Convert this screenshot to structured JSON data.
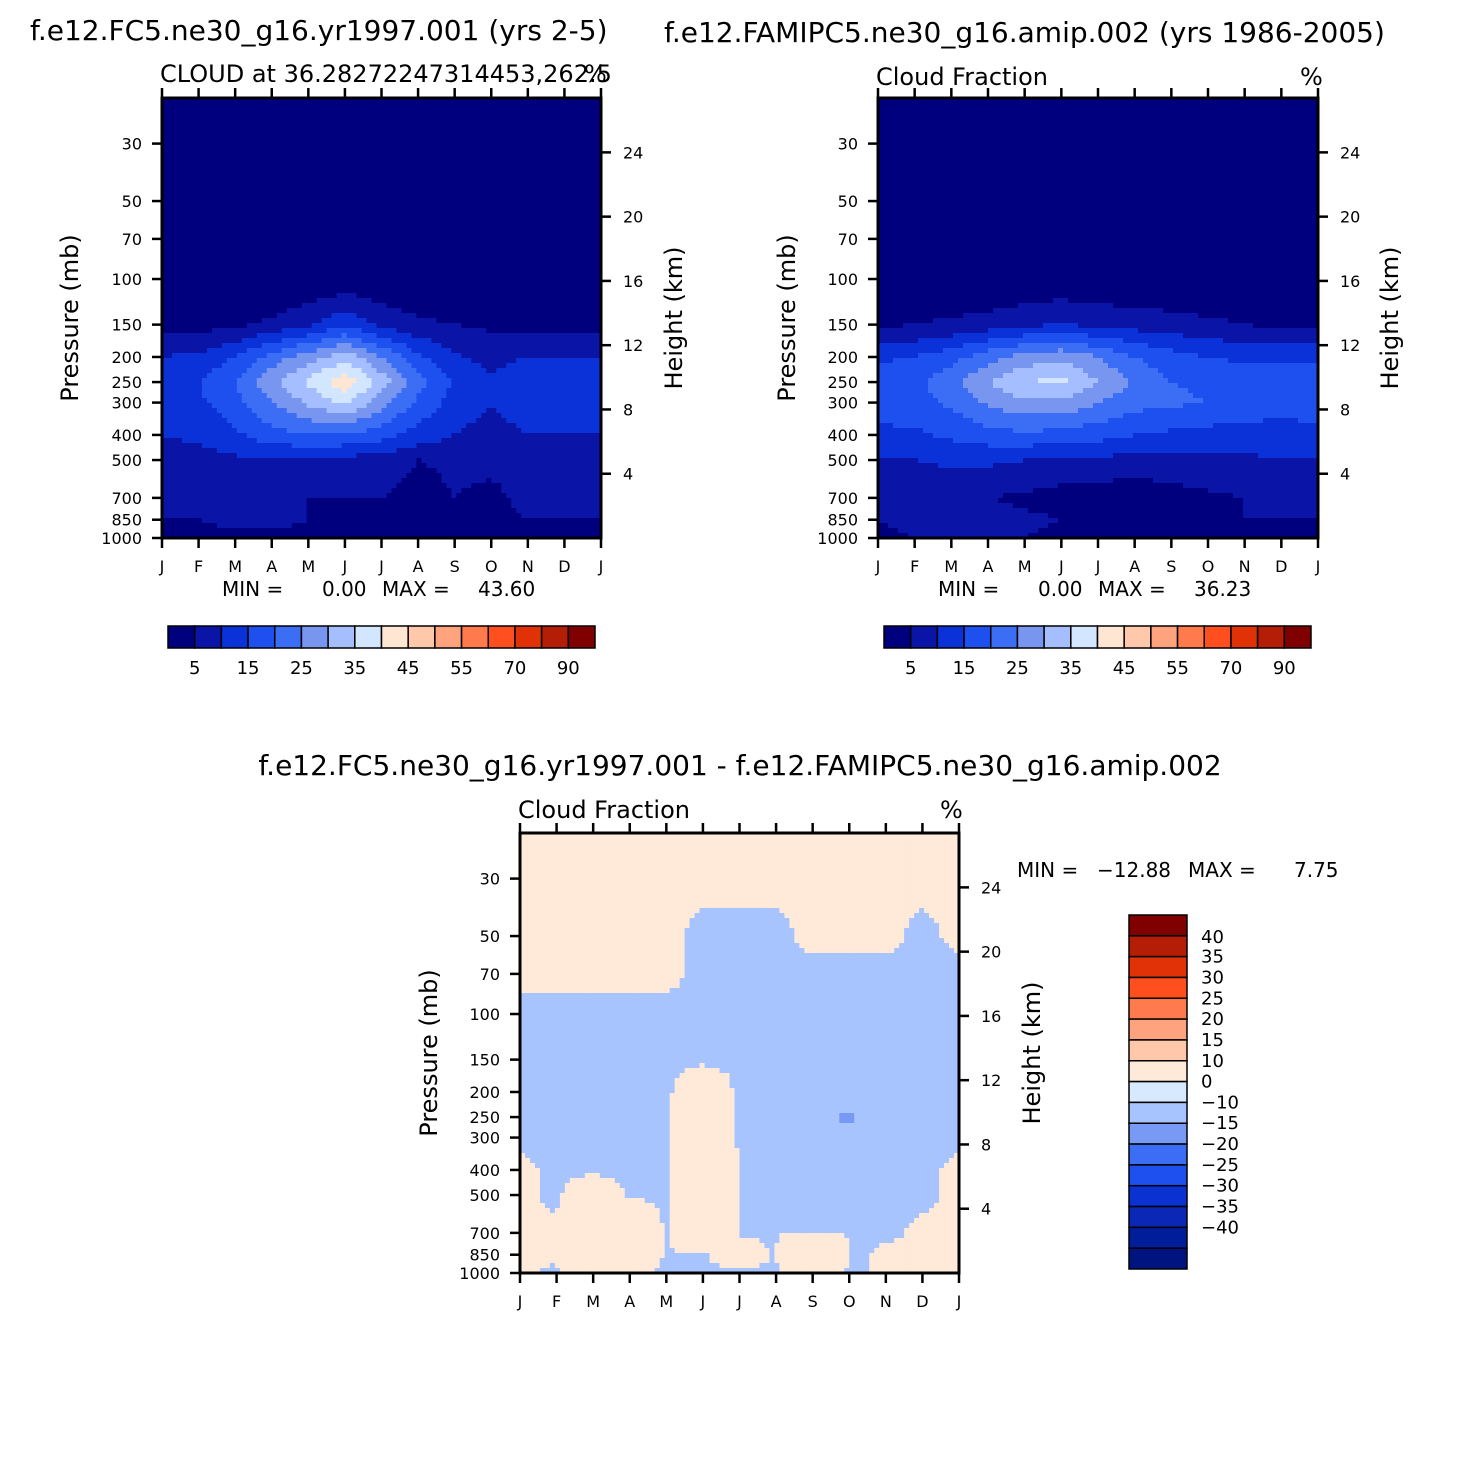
{
  "chart_data": [
    {
      "type": "heatmap",
      "subtype": "filled-contour",
      "case_title": "f.e12.FC5.ne30_g16.yr1997.001 (yrs 2-5)",
      "subtitle_left": "CLOUD at 36.28272247314453,262.5",
      "subtitle_right": "%",
      "ylabel": "Pressure (mb)",
      "ylabel2": "Height (km)",
      "x_ticks": [
        "J",
        "F",
        "M",
        "A",
        "M",
        "J",
        "J",
        "A",
        "S",
        "O",
        "N",
        "D",
        "J"
      ],
      "y_ticks": [
        30,
        50,
        70,
        100,
        150,
        200,
        250,
        300,
        400,
        500,
        700,
        850,
        1000
      ],
      "y2_ticks": [
        24,
        20,
        16,
        12,
        8,
        4
      ],
      "ylim": [
        1000,
        20
      ],
      "min_label": "MIN =",
      "min_value": "0.00",
      "max_label": "MAX =",
      "max_value": "43.60",
      "levels": [
        0,
        5,
        10,
        15,
        20,
        25,
        30,
        35,
        40,
        45,
        50,
        55,
        60,
        70,
        80,
        90
      ],
      "colorbar_labels": [
        "5",
        "15",
        "25",
        "35",
        "45",
        "55",
        "70",
        "90"
      ],
      "pressure_profile": [
        20,
        30,
        50,
        70,
        100,
        150,
        200,
        250,
        300,
        400,
        500,
        700,
        850,
        1000
      ],
      "field": [
        [
          0,
          0,
          0,
          0,
          0,
          0,
          0,
          0,
          0,
          0,
          0,
          0,
          0
        ],
        [
          0,
          0,
          0,
          0,
          0,
          0,
          0,
          0,
          0,
          0,
          0,
          0,
          0
        ],
        [
          0,
          0,
          0,
          0,
          0,
          0,
          0,
          0,
          0,
          0,
          0,
          0,
          0
        ],
        [
          0,
          0,
          0,
          0,
          0,
          0,
          0,
          0,
          0,
          0,
          0,
          0,
          0
        ],
        [
          0,
          0,
          0,
          0,
          0,
          1,
          0,
          0,
          0,
          0,
          0,
          0,
          0
        ],
        [
          3,
          3,
          4,
          6,
          9,
          14,
          9,
          6,
          5,
          4,
          3,
          3,
          3
        ],
        [
          10,
          11,
          15,
          22,
          28,
          33,
          25,
          16,
          11,
          8,
          10,
          10,
          10
        ],
        [
          14,
          15,
          20,
          29,
          36,
          43.6,
          33,
          22,
          14,
          11,
          14,
          14,
          14
        ],
        [
          13,
          14,
          18,
          25,
          31,
          36,
          27,
          19,
          13,
          10,
          13,
          13,
          13
        ],
        [
          10,
          11,
          14,
          18,
          20,
          20,
          17,
          13,
          10,
          8,
          10,
          10,
          10
        ],
        [
          8,
          8,
          9,
          10,
          9,
          8,
          8,
          5,
          6,
          6,
          7,
          7,
          7
        ],
        [
          6,
          6,
          7,
          7,
          5,
          5,
          5,
          3,
          5,
          4,
          6,
          6,
          6
        ],
        [
          5,
          5,
          6,
          6,
          5,
          4,
          4,
          3,
          4,
          4,
          5,
          5,
          5
        ],
        [
          4,
          4,
          4,
          4,
          4,
          3,
          3,
          3,
          3,
          3,
          4,
          4,
          4
        ]
      ]
    },
    {
      "type": "heatmap",
      "subtype": "filled-contour",
      "case_title": "f.e12.FAMIPC5.ne30_g16.amip.002 (yrs 1986-2005)",
      "subtitle_left": "Cloud Fraction",
      "subtitle_right": "%",
      "ylabel": "Pressure (mb)",
      "ylabel2": "Height (km)",
      "x_ticks": [
        "J",
        "F",
        "M",
        "A",
        "M",
        "J",
        "J",
        "A",
        "S",
        "O",
        "N",
        "D",
        "J"
      ],
      "y_ticks": [
        30,
        50,
        70,
        100,
        150,
        200,
        250,
        300,
        400,
        500,
        700,
        850,
        1000
      ],
      "y2_ticks": [
        24,
        20,
        16,
        12,
        8,
        4
      ],
      "ylim": [
        1000,
        20
      ],
      "min_label": "MIN =",
      "min_value": "0.00",
      "max_label": "MAX =",
      "max_value": "36.23",
      "levels": [
        0,
        5,
        10,
        15,
        20,
        25,
        30,
        35,
        40,
        45,
        50,
        55,
        60,
        70,
        80,
        90
      ],
      "colorbar_labels": [
        "5",
        "15",
        "25",
        "35",
        "45",
        "55",
        "70",
        "90"
      ],
      "pressure_profile": [
        20,
        30,
        50,
        70,
        100,
        150,
        200,
        250,
        300,
        400,
        500,
        700,
        850,
        1000
      ],
      "field": [
        [
          0,
          0,
          0,
          0,
          0,
          0,
          0,
          0,
          0,
          0,
          0,
          0,
          0
        ],
        [
          0,
          0,
          0,
          0,
          0,
          0,
          0,
          0,
          0,
          0,
          0,
          0,
          0
        ],
        [
          0,
          0,
          0,
          0,
          0,
          0,
          0,
          0,
          0,
          0,
          0,
          0,
          0
        ],
        [
          0,
          0,
          0,
          0,
          0,
          0,
          0,
          0,
          0,
          0,
          0,
          0,
          0
        ],
        [
          0,
          0,
          0,
          0,
          0,
          1,
          0,
          0,
          0,
          0,
          0,
          0,
          0
        ],
        [
          4,
          5,
          6,
          7,
          9,
          10,
          9,
          8,
          7,
          6,
          5,
          4,
          4
        ],
        [
          14,
          15,
          18,
          23,
          27,
          29,
          25,
          20,
          17,
          15,
          14,
          14,
          14
        ],
        [
          18,
          19,
          23,
          30,
          35,
          36.2,
          30,
          24,
          20,
          19,
          18,
          18,
          18
        ],
        [
          17,
          18,
          21,
          26,
          29,
          29,
          25,
          22,
          21,
          20,
          18,
          17,
          17
        ],
        [
          14,
          14,
          16,
          18,
          19,
          18,
          17,
          15,
          14,
          13,
          13,
          13,
          14
        ],
        [
          10,
          10,
          11,
          11,
          10,
          9,
          9,
          8,
          8,
          9,
          9,
          10,
          10
        ],
        [
          6,
          6,
          6,
          5,
          4,
          3,
          2,
          2,
          3,
          4,
          5,
          6,
          6
        ],
        [
          5,
          6,
          6,
          7,
          6,
          5,
          4,
          3,
          4,
          5,
          5,
          5,
          5
        ],
        [
          4,
          5,
          5,
          5,
          5,
          4,
          4,
          3,
          4,
          4,
          4,
          4,
          4
        ]
      ]
    },
    {
      "type": "heatmap",
      "subtype": "filled-contour-difference",
      "case_title": "f.e12.FC5.ne30_g16.yr1997.001 - f.e12.FAMIPC5.ne30_g16.amip.002",
      "subtitle_left": "Cloud Fraction",
      "subtitle_right": "%",
      "ylabel": "Pressure (mb)",
      "ylabel2": "Height (km)",
      "x_ticks": [
        "J",
        "F",
        "M",
        "A",
        "M",
        "J",
        "J",
        "A",
        "S",
        "O",
        "N",
        "D",
        "J"
      ],
      "y_ticks": [
        30,
        50,
        70,
        100,
        150,
        200,
        250,
        300,
        400,
        500,
        700,
        850,
        1000
      ],
      "y2_ticks": [
        24,
        20,
        16,
        12,
        8,
        4
      ],
      "ylim": [
        1000,
        20
      ],
      "min_label": "MIN =",
      "min_value": "-12.88",
      "max_label": "MAX =",
      "max_value": "7.75",
      "levels": [
        -45,
        -40,
        -35,
        -30,
        -25,
        -20,
        -15,
        -10,
        0,
        10,
        15,
        20,
        25,
        30,
        35,
        40,
        45
      ],
      "colorbar_labels": [
        "40",
        "35",
        "30",
        "25",
        "20",
        "15",
        "10",
        "0",
        "−10",
        "−15",
        "−20",
        "−25",
        "−30",
        "−35",
        "−40"
      ],
      "pressure_profile": [
        20,
        30,
        50,
        70,
        100,
        150,
        200,
        250,
        300,
        400,
        500,
        700,
        850,
        1000
      ],
      "field": [
        [
          0.1,
          0.1,
          0.1,
          0.1,
          0.1,
          0.1,
          0.1,
          0.1,
          0.1,
          0.1,
          0.1,
          0.1,
          0.1
        ],
        [
          0.1,
          0.1,
          0.1,
          0.1,
          0.1,
          0.1,
          0.1,
          0.1,
          0.1,
          0.1,
          0.1,
          0.1,
          0.1
        ],
        [
          0.1,
          0.1,
          0.1,
          0.1,
          0.1,
          -0.1,
          -0.1,
          -0.1,
          0.1,
          0.1,
          0.1,
          -0.1,
          0.1
        ],
        [
          0.1,
          0.1,
          0.1,
          0.1,
          0.1,
          -0.1,
          -0.1,
          -0.1,
          -0.1,
          -0.1,
          -0.1,
          -0.1,
          -0.1
        ],
        [
          -0.1,
          -0.1,
          -0.1,
          -0.1,
          -0.1,
          -0.1,
          -0.1,
          -0.1,
          -0.1,
          -0.1,
          -0.1,
          -0.1,
          -0.1
        ],
        [
          -0.1,
          -0.1,
          -0.1,
          -0.1,
          -0.1,
          -0.1,
          -0.1,
          -0.1,
          -0.1,
          -0.1,
          -0.1,
          -0.1,
          -0.1
        ],
        [
          -0.1,
          -0.1,
          -0.1,
          -0.1,
          -0.1,
          0.5,
          -0.1,
          -0.1,
          -2,
          -3,
          -0.1,
          -0.1,
          -0.1
        ],
        [
          -0.1,
          -0.1,
          -0.1,
          -0.1,
          -0.1,
          1,
          -0.1,
          -0.1,
          -5,
          -12.9,
          -0.1,
          -0.1,
          -0.1
        ],
        [
          -0.1,
          -0.1,
          -0.1,
          -0.1,
          -0.1,
          1,
          -0.1,
          -0.1,
          -3,
          -5,
          -0.1,
          -0.1,
          -0.1
        ],
        [
          0.1,
          -0.1,
          -0.1,
          -0.1,
          -0.1,
          2,
          -0.1,
          -0.1,
          -0.1,
          -0.1,
          -0.1,
          -0.1,
          0.1
        ],
        [
          0.1,
          -0.1,
          0.5,
          -0.1,
          -0.1,
          3,
          -0.1,
          -0.1,
          -0.1,
          -0.1,
          -0.1,
          -0.1,
          0.1
        ],
        [
          0.1,
          0.1,
          2,
          1,
          -0.1,
          2,
          -0.1,
          -0.1,
          -0.1,
          -0.1,
          -0.1,
          0.1,
          0.1
        ],
        [
          0.1,
          0.1,
          3,
          1,
          -0.1,
          -0.1,
          0.5,
          -0.1,
          7.75,
          -0.1,
          0.1,
          0.1,
          0.1
        ],
        [
          0.1,
          -0.1,
          0.1,
          0.1,
          -0.1,
          -0.1,
          -0.1,
          -0.1,
          0.1,
          -0.1,
          0.1,
          0.1,
          0.1
        ]
      ]
    }
  ],
  "palette": {
    "abs": [
      "#00007f",
      "#0a14a6",
      "#0a32d8",
      "#1e50f0",
      "#3c6ef5",
      "#7896f0",
      "#a5beff",
      "#d2e6ff",
      "#ffe6d2",
      "#ffc8aa",
      "#ffa37f",
      "#ff7b4d",
      "#ff4f1e",
      "#e03206",
      "#b41e06",
      "#800000"
    ],
    "diff": [
      "#001480",
      "#001e9a",
      "#0a28b5",
      "#0a32d0",
      "#1e50f0",
      "#3c6ef5",
      "#789af5",
      "#a8c4ff",
      "#d6e9ff",
      "#ffe9d8",
      "#ffc8aa",
      "#ffa37f",
      "#ff7b4d",
      "#ff4f1e",
      "#e03206",
      "#b41e06",
      "#800000"
    ]
  }
}
